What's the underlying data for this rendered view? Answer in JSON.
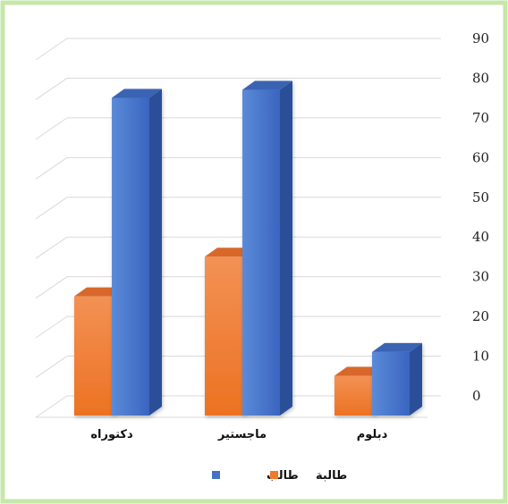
{
  "chart_data": {
    "type": "bar",
    "categories": [
      "دكتوراه",
      "ماجستير",
      "دبلوم"
    ],
    "series": [
      {
        "name": "طالبة",
        "values": [
          30,
          40,
          10
        ],
        "color": "#f07a2a"
      },
      {
        "name": "طالب",
        "values": [
          80,
          82,
          16
        ],
        "color": "#4472c4"
      }
    ],
    "ylim": [
      0,
      90
    ],
    "yticks": [
      "0",
      "10",
      "20",
      "30",
      "40",
      "50",
      "60",
      "70",
      "80",
      "90"
    ],
    "grid": true,
    "legend": "bottom",
    "border_color": "#c6e7a8"
  }
}
